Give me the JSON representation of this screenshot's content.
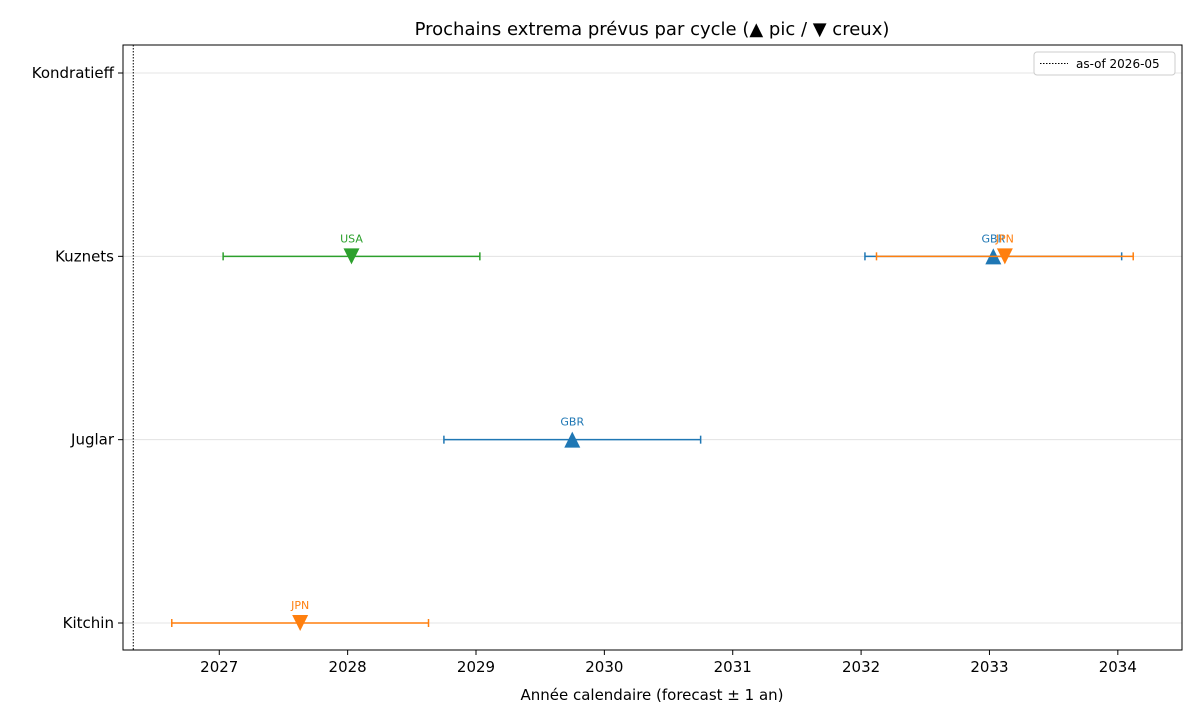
{
  "chart_data": {
    "type": "scatter",
    "title": "Prochains extrema prévus par cycle (▲ pic / ▼ creux)",
    "xlabel": "Année calendaire (forecast ± 1 an)",
    "ylabel": "",
    "xlim": [
      2026.25,
      2034.5
    ],
    "xticks": [
      2027,
      2028,
      2029,
      2030,
      2031,
      2032,
      2033,
      2034
    ],
    "categories": [
      "Kitchin",
      "Juglar",
      "Kuznets",
      "Kondratieff"
    ],
    "grid": "horizontal",
    "asof_line": {
      "x": 2026.33,
      "label": "as-of 2026-05"
    },
    "legend_placement": "top-right",
    "colors": {
      "GBR": "#1f77b4",
      "JPN": "#ff7f0e",
      "USA": "#2ca02c"
    },
    "points": [
      {
        "category": "Kitchin",
        "country": "JPN",
        "x": 2027.63,
        "kind": "trough",
        "err": 1
      },
      {
        "category": "Juglar",
        "country": "GBR",
        "x": 2029.75,
        "kind": "peak",
        "err": 1
      },
      {
        "category": "Kuznets",
        "country": "USA",
        "x": 2028.03,
        "kind": "trough",
        "err": 1
      },
      {
        "category": "Kuznets",
        "country": "GBR",
        "x": 2033.03,
        "kind": "peak",
        "err": 1
      },
      {
        "category": "Kuznets",
        "country": "JPN",
        "x": 2033.12,
        "kind": "trough",
        "err": 1
      }
    ]
  }
}
